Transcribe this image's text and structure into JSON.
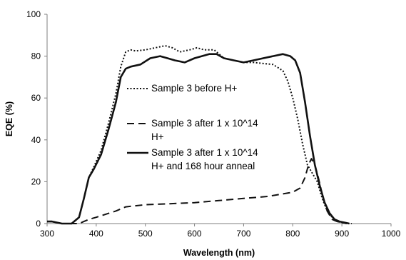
{
  "chart_data": {
    "type": "line",
    "xlabel": "Wavelength (nm)",
    "ylabel": "EQE (%)",
    "xlim": [
      300,
      1000
    ],
    "ylim": [
      0,
      100
    ],
    "xticks": [
      300,
      400,
      500,
      600,
      700,
      800,
      900,
      1000
    ],
    "yticks": [
      0,
      20,
      40,
      60,
      80,
      100
    ],
    "grid": false,
    "legend_position": "center",
    "series": [
      {
        "name": "Sample 3 before H+",
        "style": "dotted",
        "x": [
          300,
          310,
          330,
          350,
          365,
          375,
          385,
          395,
          410,
          425,
          440,
          450,
          460,
          470,
          480,
          500,
          520,
          540,
          555,
          570,
          590,
          605,
          620,
          640,
          660,
          680,
          700,
          720,
          740,
          760,
          780,
          790,
          800,
          810,
          820,
          830,
          840,
          850,
          860,
          870,
          880,
          890,
          900,
          910,
          920
        ],
        "y": [
          1,
          1,
          0,
          0,
          3,
          12,
          22,
          27,
          35,
          48,
          62,
          75,
          82,
          83,
          82.5,
          83,
          84,
          85,
          84,
          82,
          83,
          84,
          83,
          83,
          79,
          78,
          77,
          77,
          76.5,
          76,
          73,
          68,
          60,
          50,
          38,
          28,
          24,
          20,
          12,
          6,
          3,
          1,
          0.5,
          0,
          0
        ]
      },
      {
        "name": "Sample 3 after 1 x 10^14 H+",
        "style": "dashed",
        "x": [
          300,
          310,
          330,
          350,
          365,
          375,
          385,
          400,
          420,
          440,
          460,
          480,
          500,
          550,
          600,
          650,
          700,
          750,
          800,
          815,
          825,
          832,
          838,
          845,
          852,
          860,
          870,
          880,
          890,
          900,
          910
        ],
        "y": [
          1,
          1,
          0,
          0,
          0,
          1,
          2,
          3,
          4.5,
          6,
          8,
          8.5,
          9,
          9.5,
          10,
          11,
          12,
          13,
          15,
          17,
          22,
          28,
          31,
          28,
          22,
          14,
          6,
          2,
          1,
          0.5,
          0
        ]
      },
      {
        "name": "Sample 3 after 1 x 10^14 H+ and 168 hour anneal",
        "style": "solid",
        "x": [
          300,
          310,
          330,
          350,
          365,
          375,
          385,
          395,
          410,
          425,
          440,
          450,
          460,
          470,
          490,
          510,
          530,
          545,
          560,
          580,
          600,
          615,
          630,
          645,
          660,
          680,
          700,
          720,
          740,
          760,
          780,
          795,
          805,
          815,
          825,
          835,
          845,
          855,
          865,
          875,
          885,
          895,
          905,
          915
        ],
        "y": [
          1,
          1,
          0,
          0,
          3,
          12,
          22,
          26,
          33,
          45,
          58,
          70,
          74,
          75,
          76,
          79,
          80,
          79,
          78,
          77,
          79,
          80,
          81,
          81,
          79,
          78,
          77,
          78,
          79,
          80,
          81,
          80,
          78,
          72,
          58,
          42,
          28,
          18,
          10,
          5,
          2,
          1,
          0.5,
          0
        ]
      }
    ],
    "legend": [
      {
        "style": "dotted",
        "lines": [
          "Sample 3 before H+"
        ]
      },
      {
        "style": "dashed",
        "lines": [
          "Sample 3 after 1 x 10^14",
          "H+"
        ]
      },
      {
        "style": "solid",
        "lines": [
          "Sample 3 after 1 x 10^14",
          "H+ and 168 hour anneal"
        ]
      }
    ]
  }
}
